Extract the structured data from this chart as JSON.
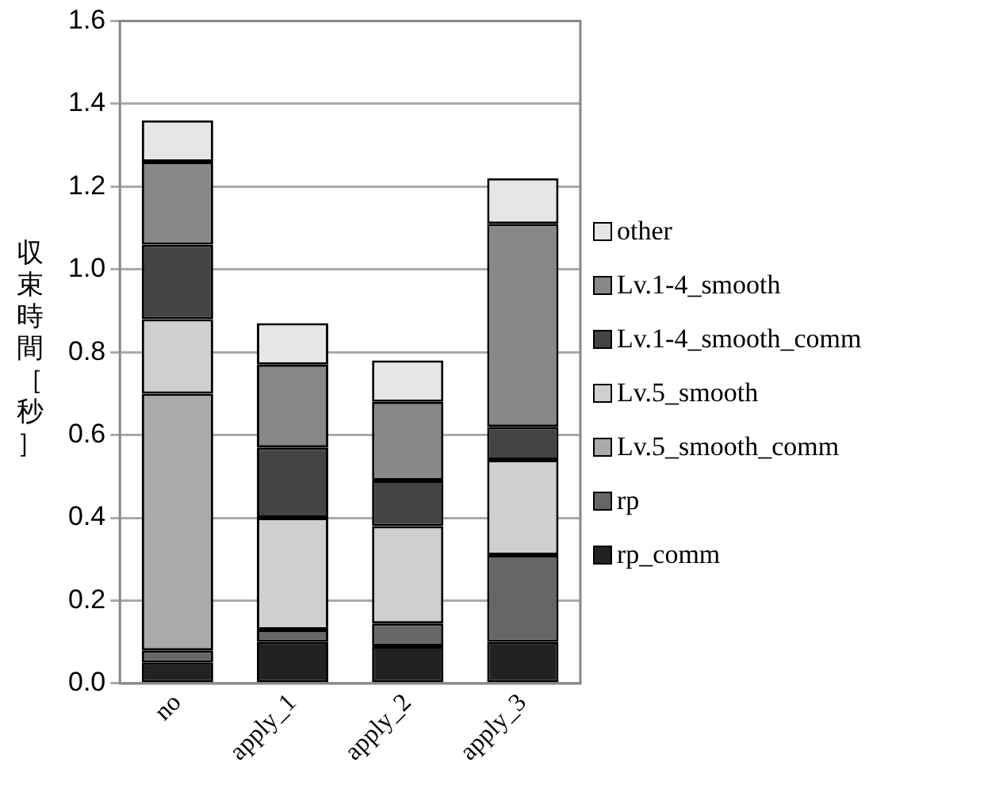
{
  "chart_data": {
    "type": "bar",
    "stacked": true,
    "ylabel": "収束時間［秒］",
    "categories": [
      "no",
      "apply_1",
      "apply_2",
      "apply_3"
    ],
    "series": [
      {
        "name": "rp_comm",
        "color": "#222222",
        "values": [
          0.05,
          0.1,
          0.09,
          0.1
        ]
      },
      {
        "name": "rp",
        "color": "#666666",
        "values": [
          0.03,
          0.03,
          0.055,
          0.21
        ]
      },
      {
        "name": "Lv.5_smooth_comm",
        "color": "#aaaaaa",
        "values": [
          0.62,
          0,
          0,
          0
        ]
      },
      {
        "name": "Lv.5_smooth",
        "color": "#cfcfcf",
        "values": [
          0.18,
          0.27,
          0.235,
          0.23
        ]
      },
      {
        "name": "Lv.1-4_smooth_comm",
        "color": "#444444",
        "values": [
          0.18,
          0.17,
          0.11,
          0.08
        ]
      },
      {
        "name": "Lv.1-4_smooth",
        "color": "#888888",
        "values": [
          0.2,
          0.2,
          0.19,
          0.49
        ]
      },
      {
        "name": "other",
        "color": "#e6e6e6",
        "values": [
          0.1,
          0.1,
          0.1,
          0.11
        ]
      }
    ],
    "ylim": [
      0,
      1.6
    ],
    "yticks": [
      {
        "value": 0,
        "label": "0.0"
      },
      {
        "value": 0.2,
        "label": "0.2"
      },
      {
        "value": 0.4,
        "label": "0.4"
      },
      {
        "value": 0.6,
        "label": "0.6"
      },
      {
        "value": 0.8,
        "label": "0.8"
      },
      {
        "value": 1,
        "label": "1.0"
      },
      {
        "value": 1.2,
        "label": "1.2"
      },
      {
        "value": 1.4,
        "label": "1.4"
      },
      {
        "value": 1.6,
        "label": "1.6"
      }
    ],
    "grid": "y",
    "legend": "right"
  }
}
